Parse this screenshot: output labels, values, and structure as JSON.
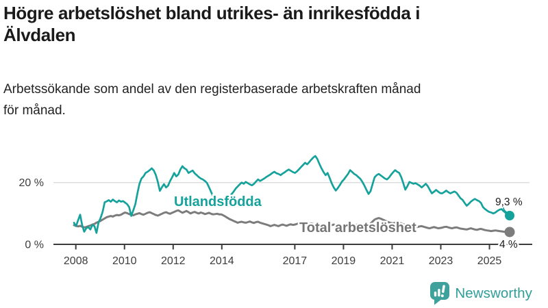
{
  "title": {
    "line1": "Högre arbetslöshet bland utrikes- än inrikesfödda i",
    "line2": "Älvdalen"
  },
  "subtitle": {
    "line1": "Arbetssökande som andel av den registerbaserade arbetskraften månad",
    "line2": "för månad."
  },
  "branding": {
    "name": "Newsworthy",
    "color": "#2f9d98",
    "icon": "speech-bubble-bar-chart"
  },
  "chart_data": {
    "type": "line",
    "title": "Högre arbetslöshet bland utrikes- än inrikesfödda i Älvdalen",
    "subtitle": "Arbetssökande som andel av den registerbaserade arbetskraften månad för månad.",
    "frequency": "monthly",
    "x_start": "2008-01",
    "x_end": "2025-10",
    "ylim": [
      0,
      30
    ],
    "grid": "single horizontal gridline at 20 %",
    "legend_position": "inline labels on lines",
    "x_tick_years": [
      2008,
      2010,
      2012,
      2014,
      2017,
      2019,
      2021,
      2023,
      2025
    ],
    "x_tick_labels": [
      "2008",
      "2010",
      "2012",
      "2014",
      "2017",
      "2019",
      "2021",
      "2023",
      "2025"
    ],
    "y_ticks": [
      {
        "value": 0,
        "label": "0 %"
      },
      {
        "value": 20,
        "label": "20 %"
      }
    ],
    "colors": {
      "axis": "#3c3c3c",
      "grid": "#dcdcdc",
      "tick_text": "#3c3c3c",
      "value_label_text": "#1a1a1a"
    },
    "series": [
      {
        "name": "Total arbetslöshet",
        "color": "#7c7c7c",
        "label_color": "#757575",
        "end_label": "4 %",
        "end_value": 4.0,
        "values": [
          6.2,
          6.0,
          5.8,
          6.0,
          5.7,
          5.5,
          5.6,
          5.9,
          6.1,
          6.4,
          6.6,
          7.0,
          7.3,
          7.6,
          8.0,
          8.4,
          8.8,
          9.0,
          9.2,
          9.0,
          9.3,
          9.5,
          9.4,
          9.6,
          10.0,
          10.3,
          10.1,
          9.8,
          9.6,
          9.4,
          9.7,
          9.9,
          10.1,
          9.8,
          9.6,
          9.9,
          10.2,
          10.4,
          10.1,
          9.8,
          9.5,
          9.3,
          9.6,
          9.9,
          10.2,
          10.4,
          10.1,
          9.9,
          10.2,
          10.5,
          10.8,
          11.0,
          10.6,
          10.2,
          10.5,
          10.8,
          10.4,
          10.0,
          10.3,
          10.5,
          10.2,
          10.0,
          10.3,
          10.1,
          9.8,
          10.0,
          10.2,
          9.9,
          9.7,
          9.8,
          9.9,
          9.7,
          9.7,
          9.4,
          9.0,
          8.6,
          8.2,
          7.9,
          7.6,
          7.3,
          7.0,
          7.2,
          7.3,
          7.1,
          7.0,
          7.2,
          7.4,
          7.1,
          6.9,
          7.2,
          7.3,
          7.0,
          6.8,
          6.6,
          6.4,
          6.2,
          5.9,
          6.1,
          6.3,
          6.1,
          5.9,
          6.2,
          6.4,
          6.2,
          6.0,
          6.3,
          6.5,
          6.3,
          6.4,
          6.6,
          6.9,
          7.0,
          6.8,
          6.6,
          6.4,
          6.6,
          6.8,
          6.6,
          6.4,
          6.3,
          6.2,
          6.4,
          6.6,
          6.4,
          6.2,
          6.0,
          6.2,
          6.4,
          6.2,
          6.0,
          6.2,
          6.4,
          6.3,
          6.5,
          6.7,
          6.5,
          6.3,
          6.1,
          6.3,
          6.5,
          6.3,
          6.1,
          6.0,
          6.2,
          6.4,
          6.7,
          7.4,
          8.0,
          8.3,
          8.5,
          8.3,
          8.0,
          7.7,
          7.4,
          7.1,
          6.9,
          6.8,
          7.0,
          7.2,
          7.0,
          6.8,
          6.5,
          6.3,
          6.1,
          6.0,
          5.9,
          5.8,
          5.7,
          5.6,
          5.8,
          5.9,
          5.7,
          5.5,
          5.3,
          5.2,
          5.4,
          5.6,
          5.4,
          5.2,
          5.3,
          5.4,
          5.6,
          5.7,
          5.5,
          5.3,
          5.2,
          5.4,
          5.5,
          5.3,
          5.1,
          5.0,
          4.9,
          4.8,
          5.0,
          5.2,
          5.0,
          4.8,
          4.7,
          4.9,
          5.0,
          4.8,
          4.6,
          4.5,
          4.4,
          4.3,
          4.4,
          4.5,
          4.4,
          4.3,
          4.2,
          4.1,
          4.0,
          4.0,
          4.0
        ]
      },
      {
        "name": "Utlandsfödda",
        "color": "#15a29b",
        "label_color": "#15a29b",
        "end_label": "9,3 %",
        "end_value": 9.3,
        "values": [
          7.0,
          5.9,
          7.8,
          9.6,
          6.3,
          4.1,
          5.2,
          5.6,
          4.8,
          6.3,
          5.9,
          3.7,
          7.0,
          8.5,
          10.5,
          13.6,
          13.9,
          14.3,
          13.8,
          14.5,
          14.0,
          13.6,
          14.2,
          13.8,
          14.0,
          13.5,
          13.0,
          12.0,
          9.2,
          11.0,
          13.0,
          16.5,
          19.5,
          21.3,
          22.0,
          23.1,
          23.5,
          24.0,
          24.6,
          23.9,
          22.5,
          20.2,
          17.3,
          18.5,
          19.5,
          18.4,
          19.0,
          20.5,
          21.7,
          23.1,
          22.0,
          22.6,
          24.2,
          25.3,
          24.6,
          24.2,
          23.1,
          23.5,
          23.9,
          23.0,
          22.4,
          21.8,
          21.3,
          21.0,
          20.5,
          19.9,
          18.5,
          17.0,
          15.5,
          14.0,
          13.2,
          13.6,
          14.2,
          14.8,
          15.3,
          15.0,
          15.6,
          16.2,
          17.0,
          18.0,
          18.7,
          19.4,
          20.0,
          19.6,
          20.2,
          19.8,
          19.4,
          19.1,
          19.6,
          20.3,
          21.0,
          20.5,
          20.9,
          21.3,
          21.8,
          22.2,
          22.6,
          23.1,
          23.5,
          23.0,
          22.8,
          22.4,
          22.9,
          23.3,
          23.8,
          24.2,
          23.8,
          23.4,
          23.1,
          23.6,
          24.3,
          25.0,
          25.7,
          26.4,
          25.9,
          26.6,
          27.4,
          28.1,
          28.6,
          27.6,
          26.0,
          24.6,
          23.4,
          22.4,
          23.1,
          21.5,
          19.8,
          18.4,
          17.4,
          18.2,
          19.2,
          20.3,
          21.0,
          21.9,
          22.8,
          24.0,
          23.4,
          22.8,
          22.4,
          21.8,
          21.2,
          20.2,
          19.0,
          17.6,
          16.3,
          17.2,
          19.5,
          21.7,
          22.4,
          22.8,
          22.3,
          21.8,
          21.3,
          21.0,
          21.6,
          22.5,
          23.3,
          24.0,
          23.5,
          23.1,
          21.8,
          19.8,
          17.7,
          18.8,
          20.2,
          19.9,
          19.6,
          19.8,
          19.4,
          19.0,
          18.4,
          19.0,
          19.6,
          18.8,
          17.6,
          16.5,
          17.0,
          17.6,
          17.1,
          16.6,
          16.5,
          16.9,
          17.4,
          16.9,
          16.5,
          16.8,
          17.1,
          16.7,
          15.8,
          14.9,
          14.4,
          13.4,
          12.5,
          13.1,
          13.8,
          14.3,
          14.7,
          14.3,
          14.0,
          13.4,
          12.0,
          11.4,
          10.9,
          10.5,
          10.3,
          10.0,
          10.3,
          10.8,
          11.2,
          11.4,
          10.8,
          10.2,
          9.7,
          9.3
        ]
      }
    ]
  }
}
